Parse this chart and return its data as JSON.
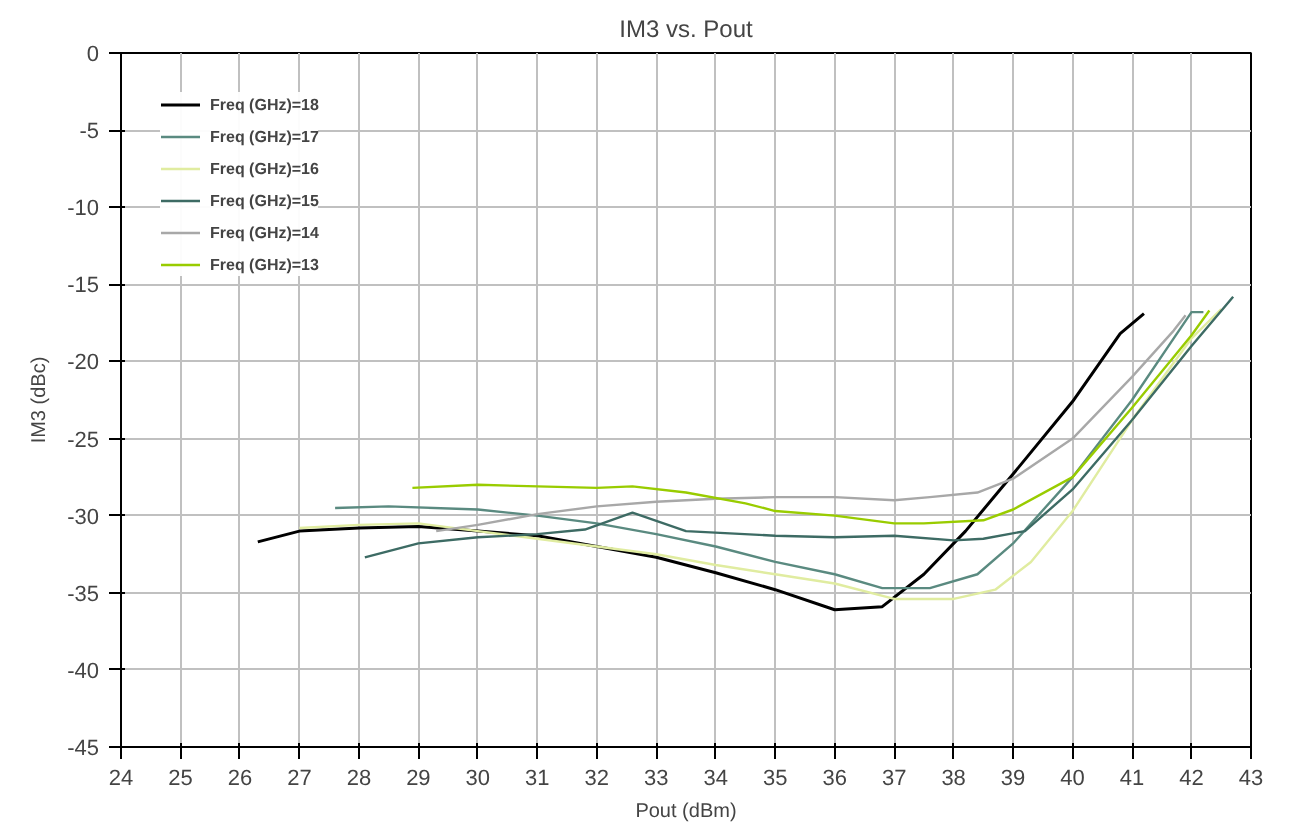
{
  "chart_data": {
    "type": "line",
    "title": "IM3 vs. Pout",
    "xlabel": "Pout (dBm)",
    "ylabel": "IM3 (dBc)",
    "xlim": [
      24,
      43
    ],
    "xticks": [
      24,
      25,
      26,
      27,
      28,
      29,
      30,
      31,
      32,
      33,
      34,
      35,
      36,
      37,
      38,
      39,
      40,
      41,
      42,
      43
    ],
    "ylim": [
      -45,
      0
    ],
    "yticks": [
      -45,
      -40,
      -35,
      -30,
      -25,
      -20,
      -15,
      -10,
      -5,
      0
    ],
    "grid": true,
    "legend": "top left",
    "marker": "none",
    "line_style": "solid",
    "series": [
      {
        "name": "Freq (GHz)=18",
        "color": "#000000",
        "x": [
          26.3,
          27,
          28,
          29,
          30,
          31,
          32,
          33,
          34,
          35,
          36,
          36.8,
          37.5,
          38.2,
          39,
          40,
          40.8,
          41.2
        ],
        "values": [
          -31.7,
          -31,
          -30.8,
          -30.7,
          -31,
          -31.3,
          -32,
          -32.7,
          -33.7,
          -34.8,
          -36.1,
          -35.9,
          -33.8,
          -31,
          -27.3,
          -22.6,
          -18.2,
          -16.9
        ]
      },
      {
        "name": "Freq (GHz)=17",
        "color": "#5a8a80",
        "x": [
          27.6,
          28.5,
          30,
          31,
          32,
          33,
          34,
          35,
          36,
          36.8,
          37.6,
          38.4,
          39,
          40,
          41,
          41.7,
          42,
          42.2
        ],
        "values": [
          -29.5,
          -29.4,
          -29.6,
          -30,
          -30.5,
          -31.2,
          -32,
          -33,
          -33.8,
          -34.7,
          -34.7,
          -33.8,
          -31.8,
          -27.5,
          -22.5,
          -18.5,
          -16.8,
          -16.8
        ]
      },
      {
        "name": "Freq (GHz)=16",
        "color": "#e0eca0",
        "x": [
          27,
          28,
          29,
          30,
          31,
          32,
          33,
          34,
          35,
          36,
          37,
          38,
          38.7,
          39.3,
          40,
          41,
          42,
          42.5
        ],
        "values": [
          -30.8,
          -30.6,
          -30.5,
          -31,
          -31.5,
          -32,
          -32.5,
          -33.2,
          -33.8,
          -34.4,
          -35.4,
          -35.4,
          -34.8,
          -33,
          -29.7,
          -23.8,
          -18.5,
          -16.6
        ]
      },
      {
        "name": "Freq (GHz)=15",
        "color": "#3d6b64",
        "x": [
          28.1,
          29,
          30,
          31,
          31.8,
          32.6,
          33.5,
          35,
          36,
          37,
          38,
          38.5,
          39.2,
          40,
          41,
          42,
          42.7
        ],
        "values": [
          -32.7,
          -31.8,
          -31.4,
          -31.2,
          -30.9,
          -29.8,
          -31,
          -31.3,
          -31.4,
          -31.3,
          -31.6,
          -31.5,
          -31,
          -28.3,
          -23.8,
          -19,
          -15.8
        ]
      },
      {
        "name": "Freq (GHz)=14",
        "color": "#a8a8a8",
        "x": [
          29.3,
          30,
          31,
          32,
          33,
          34,
          35,
          36,
          37,
          37.6,
          38.4,
          39,
          40,
          41,
          41.7,
          41.9
        ],
        "values": [
          -31,
          -30.6,
          -29.9,
          -29.4,
          -29.1,
          -28.9,
          -28.8,
          -28.8,
          -29,
          -28.8,
          -28.5,
          -27.6,
          -25,
          -21,
          -18,
          -17
        ]
      },
      {
        "name": "Freq (GHz)=13",
        "color": "#99cc00",
        "x": [
          28.9,
          30,
          31,
          32,
          32.6,
          33.5,
          34.5,
          35,
          36,
          37,
          37.5,
          38.5,
          39,
          40,
          41,
          42,
          42.3
        ],
        "values": [
          -28.2,
          -28,
          -28.1,
          -28.2,
          -28.1,
          -28.5,
          -29.2,
          -29.7,
          -30,
          -30.5,
          -30.5,
          -30.3,
          -29.6,
          -27.5,
          -23,
          -18.3,
          -16.7
        ]
      }
    ]
  }
}
